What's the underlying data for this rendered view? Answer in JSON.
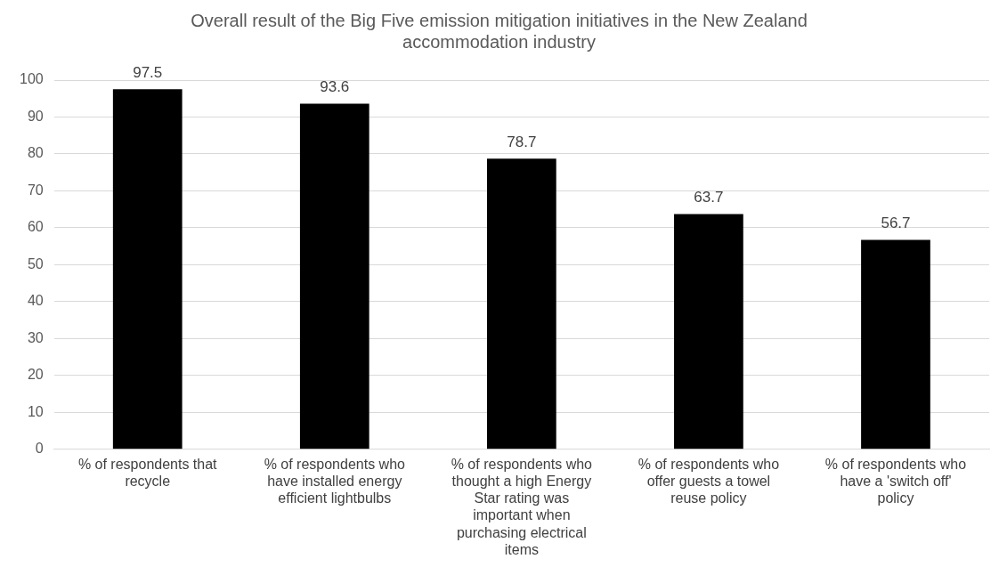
{
  "chart_data": {
    "type": "bar",
    "title": "Overall result of the Big Five emission mitigation initiatives in the New Zealand accommodation industry",
    "categories": [
      "% of respondents that recycle",
      "% of respondents who have installed energy efficient lightbulbs",
      "% of respondents who thought a high Energy Star rating was important when purchasing electrical items",
      "% of respondents who offer guests a towel reuse policy",
      "% of respondents who have a 'switch off' policy"
    ],
    "values": [
      97.5,
      93.6,
      78.7,
      63.7,
      56.7
    ],
    "color": "#000000",
    "ylim": [
      0,
      100
    ],
    "yticks": [
      0,
      10,
      20,
      30,
      40,
      50,
      60,
      70,
      80,
      90,
      100
    ],
    "grid": "y",
    "legend": false,
    "data_labels": true
  }
}
